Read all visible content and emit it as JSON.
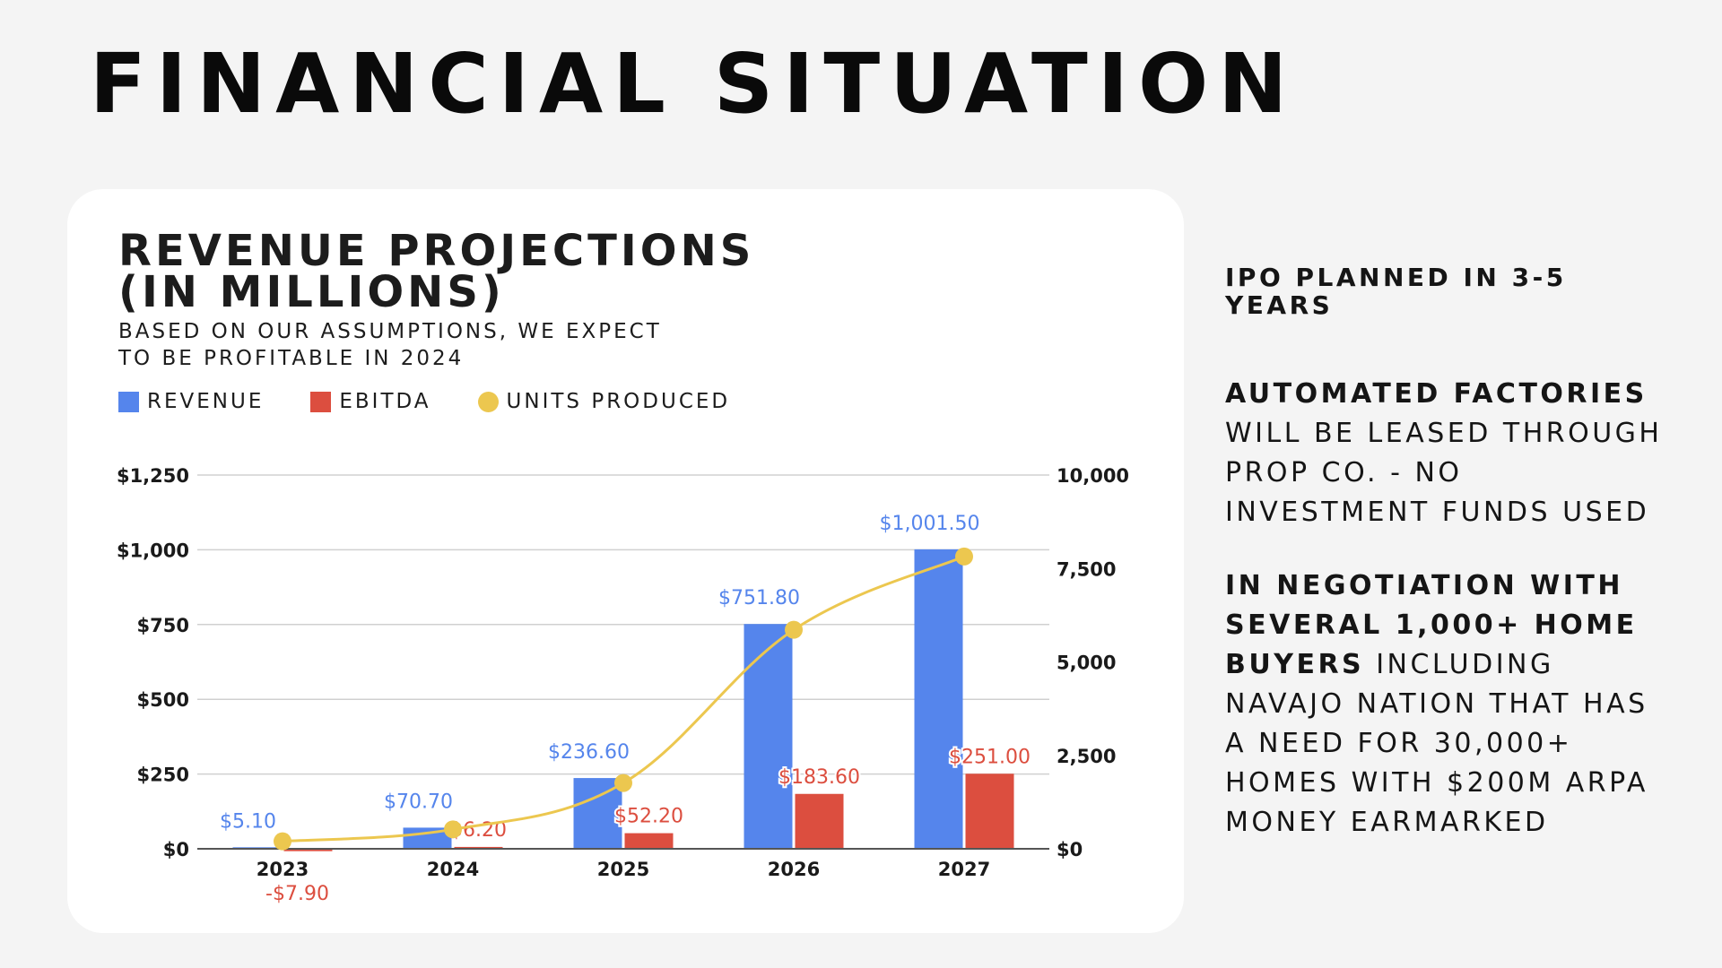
{
  "page": {
    "title": "FINANCIAL SITUATION"
  },
  "card": {
    "title_line1": "REVENUE PROJECTIONS",
    "title_line2": "(IN MILLIONS)",
    "subtitle": "BASED ON OUR ASSUMPTIONS, WE EXPECT TO BE PROFITABLE IN 2024"
  },
  "chart_data": {
    "type": "bar",
    "categories": [
      "2023",
      "2024",
      "2025",
      "2026",
      "2027"
    ],
    "series": [
      {
        "name": "REVENUE",
        "kind": "bar",
        "color": "#5585ec",
        "axis": "left",
        "values": [
          5.1,
          70.7,
          236.6,
          751.8,
          1001.5
        ],
        "labels": [
          "$5.10",
          "$70.70",
          "$236.60",
          "$751.80",
          "$1,001.50"
        ]
      },
      {
        "name": "EBITDA",
        "kind": "bar",
        "color": "#dc4e3f",
        "axis": "left",
        "values": [
          -7.9,
          6.2,
          52.2,
          183.6,
          251.0
        ],
        "labels": [
          "-$7.90",
          "$6.20",
          "$52.20",
          "$183.60",
          "$251.00"
        ]
      },
      {
        "name": "UNITS PRODUCED",
        "kind": "line",
        "color": "#ecc74f",
        "axis": "right",
        "values": [
          200,
          520,
          1760,
          5860,
          7820
        ]
      }
    ],
    "y_left": {
      "range": [
        0,
        1250
      ],
      "ticks": [
        0,
        250,
        500,
        750,
        1000,
        1250
      ],
      "tick_labels": [
        "$0",
        "$250",
        "$500",
        "$750",
        "$1,000",
        "$1,250"
      ]
    },
    "y_right": {
      "range": [
        0,
        10000
      ],
      "ticks": [
        0,
        2500,
        5000,
        7500,
        10000
      ],
      "tick_labels": [
        "$0",
        "2,500",
        "5,000",
        "7,500",
        "10,000"
      ]
    },
    "grid": true,
    "legend_position": "top-left",
    "gridline_color": "#d0d0d0",
    "axis_line_color": "#555555"
  },
  "sidebar": {
    "ipo": "IPO PLANNED IN 3-5 YEARS",
    "factories_bold": "AUTOMATED FACTORIES",
    "factories_text": " WILL BE LEASED THROUGH PROP CO. - NO INVESTMENT FUNDS USED",
    "negotiation_bold": "IN NEGOTIATION WITH SEVERAL 1,000+ HOME BUYERS",
    "negotiation_text": " INCLUDING NAVAJO NATION THAT HAS A NEED FOR 30,000+ HOMES WITH $200M ARPA MONEY EARMARKED"
  }
}
